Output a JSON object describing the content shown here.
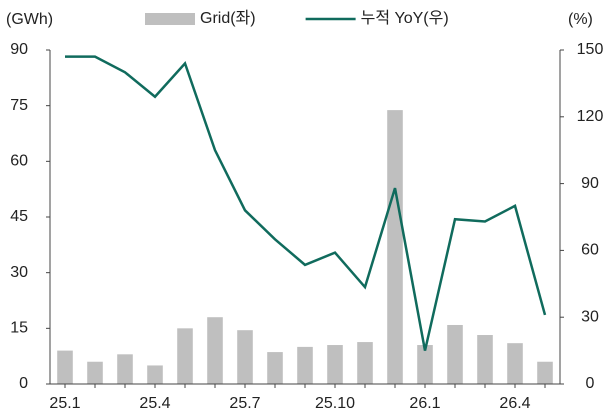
{
  "chart_data": {
    "type": "bar_line",
    "y_label": "(GWh)",
    "y2_label": "(%)",
    "categories": [
      "25.1",
      null,
      null,
      "25.4",
      null,
      null,
      "25.7",
      null,
      null,
      "25.10",
      null,
      null,
      "26.1",
      null,
      null,
      "26.4",
      null
    ],
    "series": [
      {
        "name": "Grid(좌)",
        "type": "bar",
        "color": "#bfbfbf",
        "values": [
          9,
          6,
          8,
          5,
          15,
          18,
          14.5,
          8.6,
          10,
          10.5,
          11.3,
          73.8,
          10.5,
          15.9,
          13.2,
          11,
          6
        ]
      },
      {
        "name": "누적 YoY(우)",
        "type": "line",
        "axis": "y2",
        "color": "#106b5d",
        "values": [
          147,
          147,
          140,
          129,
          144,
          105,
          78,
          65,
          53.5,
          59,
          43.5,
          88,
          15,
          74,
          73,
          80,
          31
        ]
      }
    ],
    "ylim": [
      0,
      90
    ],
    "yticks": [
      0,
      15,
      30,
      45,
      60,
      75,
      90
    ],
    "y2lim": [
      0,
      150
    ],
    "y2ticks": [
      0,
      30,
      60,
      90,
      120,
      150
    ]
  }
}
